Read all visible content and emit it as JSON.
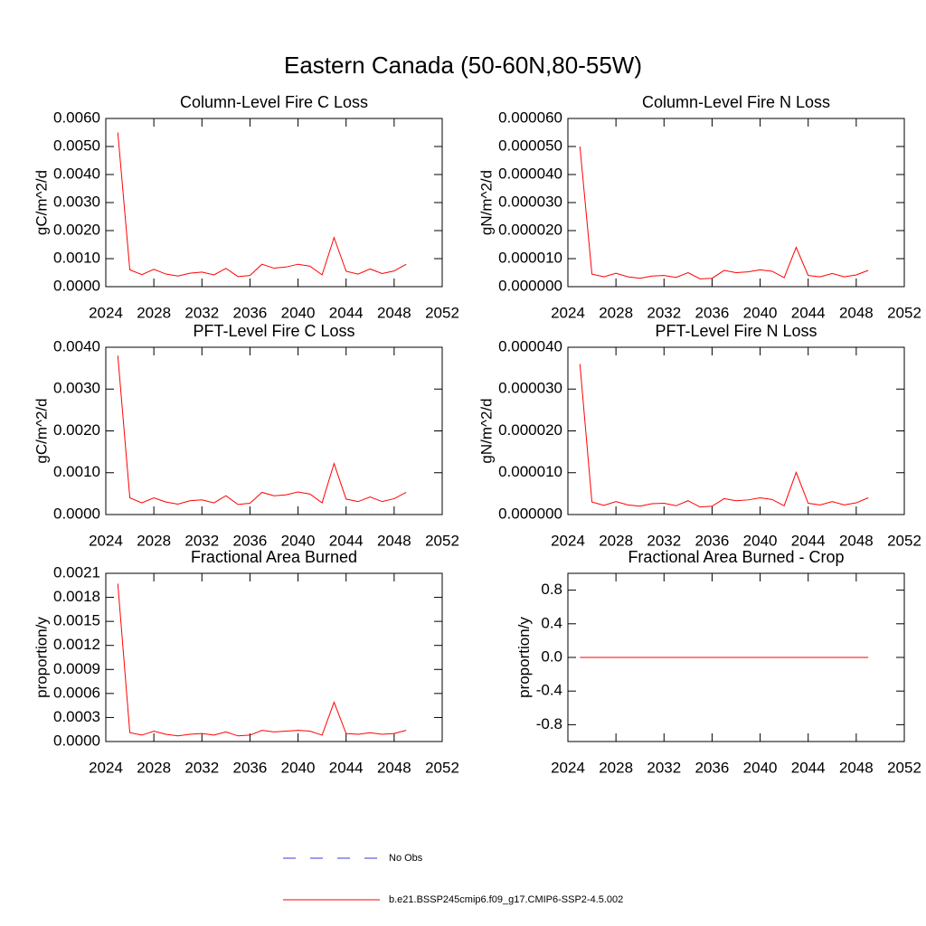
{
  "title": "Eastern Canada (50-60N,80-55W)",
  "chart_data": [
    {
      "type": "line",
      "title": "Column-Level Fire C Loss",
      "ylabel": "gC/m^2/d",
      "x": [
        2025,
        2026,
        2027,
        2028,
        2029,
        2030,
        2031,
        2032,
        2033,
        2034,
        2035,
        2036,
        2037,
        2038,
        2039,
        2040,
        2041,
        2042,
        2043,
        2044,
        2045,
        2046,
        2047,
        2048,
        2049
      ],
      "values": [
        0.0055,
        0.0006,
        0.00043,
        0.00062,
        0.00045,
        0.00038,
        0.00048,
        0.00052,
        0.00042,
        0.00065,
        0.00036,
        0.0004,
        0.0008,
        0.00066,
        0.0007,
        0.0008,
        0.00073,
        0.00042,
        0.00175,
        0.00055,
        0.00045,
        0.00063,
        0.00047,
        0.00056,
        0.0008
      ],
      "color": "#ff0000",
      "xlim": [
        2024,
        2052
      ],
      "xticks": [
        2024,
        2028,
        2032,
        2036,
        2040,
        2044,
        2048,
        2052
      ],
      "ylim": [
        0,
        0.006
      ],
      "yticks": [
        {
          "value": 0,
          "label": "0.0000"
        },
        {
          "value": 0.001,
          "label": "0.0010"
        },
        {
          "value": 0.002,
          "label": "0.0020"
        },
        {
          "value": 0.003,
          "label": "0.0030"
        },
        {
          "value": 0.004,
          "label": "0.0040"
        },
        {
          "value": 0.005,
          "label": "0.0050"
        },
        {
          "value": 0.006,
          "label": "0.0060"
        }
      ]
    },
    {
      "type": "line",
      "title": "Column-Level Fire N Loss",
      "ylabel": "gN/m^2/d",
      "x": [
        2025,
        2026,
        2027,
        2028,
        2029,
        2030,
        2031,
        2032,
        2033,
        2034,
        2035,
        2036,
        2037,
        2038,
        2039,
        2040,
        2041,
        2042,
        2043,
        2044,
        2045,
        2046,
        2047,
        2048,
        2049
      ],
      "values": [
        5e-05,
        4.5e-06,
        3.5e-06,
        4.8e-06,
        3.5e-06,
        3e-06,
        3.8e-06,
        4e-06,
        3.3e-06,
        5e-06,
        2.8e-06,
        3e-06,
        5.8e-06,
        5e-06,
        5.3e-06,
        6e-06,
        5.5e-06,
        3.2e-06,
        1.4e-05,
        4e-06,
        3.5e-06,
        4.7e-06,
        3.5e-06,
        4.2e-06,
        5.8e-06
      ],
      "color": "#ff0000",
      "xlim": [
        2024,
        2052
      ],
      "xticks": [
        2024,
        2028,
        2032,
        2036,
        2040,
        2044,
        2048,
        2052
      ],
      "ylim": [
        0,
        6e-05
      ],
      "yticks": [
        {
          "value": 0,
          "label": "0.000000"
        },
        {
          "value": 1e-05,
          "label": "0.000010"
        },
        {
          "value": 2e-05,
          "label": "0.000020"
        },
        {
          "value": 3e-05,
          "label": "0.000030"
        },
        {
          "value": 4e-05,
          "label": "0.000040"
        },
        {
          "value": 5e-05,
          "label": "0.000050"
        },
        {
          "value": 6e-05,
          "label": "0.000060"
        }
      ]
    },
    {
      "type": "line",
      "title": "PFT-Level Fire C Loss",
      "ylabel": "gC/m^2/d",
      "x": [
        2025,
        2026,
        2027,
        2028,
        2029,
        2030,
        2031,
        2032,
        2033,
        2034,
        2035,
        2036,
        2037,
        2038,
        2039,
        2040,
        2041,
        2042,
        2043,
        2044,
        2045,
        2046,
        2047,
        2048,
        2049
      ],
      "values": [
        0.0038,
        0.0004,
        0.00028,
        0.0004,
        0.0003,
        0.00025,
        0.00033,
        0.00035,
        0.00028,
        0.00045,
        0.00024,
        0.00027,
        0.00053,
        0.00045,
        0.00047,
        0.00054,
        0.00049,
        0.00028,
        0.00122,
        0.00037,
        0.00031,
        0.00042,
        0.00031,
        0.00038,
        0.00053
      ],
      "color": "#ff0000",
      "xlim": [
        2024,
        2052
      ],
      "xticks": [
        2024,
        2028,
        2032,
        2036,
        2040,
        2044,
        2048,
        2052
      ],
      "ylim": [
        0,
        0.004
      ],
      "yticks": [
        {
          "value": 0,
          "label": "0.0000"
        },
        {
          "value": 0.001,
          "label": "0.0010"
        },
        {
          "value": 0.002,
          "label": "0.0020"
        },
        {
          "value": 0.003,
          "label": "0.0030"
        },
        {
          "value": 0.004,
          "label": "0.0040"
        }
      ]
    },
    {
      "type": "line",
      "title": "PFT-Level Fire N Loss",
      "ylabel": "gN/m^2/d",
      "x": [
        2025,
        2026,
        2027,
        2028,
        2029,
        2030,
        2031,
        2032,
        2033,
        2034,
        2035,
        2036,
        2037,
        2038,
        2039,
        2040,
        2041,
        2042,
        2043,
        2044,
        2045,
        2046,
        2047,
        2048,
        2049
      ],
      "values": [
        3.6e-05,
        3e-06,
        2.2e-06,
        3.1e-06,
        2.3e-06,
        2e-06,
        2.6e-06,
        2.7e-06,
        2.1e-06,
        3.3e-06,
        1.8e-06,
        2e-06,
        3.8e-06,
        3.3e-06,
        3.5e-06,
        4e-06,
        3.6e-06,
        2.1e-06,
        1.01e-05,
        2.7e-06,
        2.3e-06,
        3.1e-06,
        2.3e-06,
        2.8e-06,
        4e-06
      ],
      "color": "#ff0000",
      "xlim": [
        2024,
        2052
      ],
      "xticks": [
        2024,
        2028,
        2032,
        2036,
        2040,
        2044,
        2048,
        2052
      ],
      "ylim": [
        0,
        4e-05
      ],
      "yticks": [
        {
          "value": 0,
          "label": "0.000000"
        },
        {
          "value": 1e-05,
          "label": "0.000010"
        },
        {
          "value": 2e-05,
          "label": "0.000020"
        },
        {
          "value": 3e-05,
          "label": "0.000030"
        },
        {
          "value": 4e-05,
          "label": "0.000040"
        }
      ]
    },
    {
      "type": "line",
      "title": "Fractional Area Burned",
      "ylabel": "proportion/y",
      "x": [
        2025,
        2026,
        2027,
        2028,
        2029,
        2030,
        2031,
        2032,
        2033,
        2034,
        2035,
        2036,
        2037,
        2038,
        2039,
        2040,
        2041,
        2042,
        2043,
        2044,
        2045,
        2046,
        2047,
        2048,
        2049
      ],
      "values": [
        0.00197,
        0.00011,
        8e-05,
        0.00013,
        9e-05,
        7e-05,
        9e-05,
        0.0001,
        8e-05,
        0.00012,
        7e-05,
        8e-05,
        0.00014,
        0.00012,
        0.00013,
        0.00014,
        0.00013,
        8e-05,
        0.00049,
        0.0001,
        9e-05,
        0.00011,
        9e-05,
        0.0001,
        0.00014
      ],
      "color": "#ff0000",
      "xlim": [
        2024,
        2052
      ],
      "xticks": [
        2024,
        2028,
        2032,
        2036,
        2040,
        2044,
        2048,
        2052
      ],
      "ylim": [
        0,
        0.0021
      ],
      "yticks": [
        {
          "value": 0,
          "label": "0.0000"
        },
        {
          "value": 0.0003,
          "label": "0.0003"
        },
        {
          "value": 0.0006,
          "label": "0.0006"
        },
        {
          "value": 0.0009,
          "label": "0.0009"
        },
        {
          "value": 0.0012,
          "label": "0.0012"
        },
        {
          "value": 0.0015,
          "label": "0.0015"
        },
        {
          "value": 0.0018,
          "label": "0.0018"
        },
        {
          "value": 0.0021,
          "label": "0.0021"
        }
      ]
    },
    {
      "type": "line",
      "title": "Fractional Area Burned - Crop",
      "ylabel": "proportion/y",
      "x": [
        2025,
        2026,
        2027,
        2028,
        2029,
        2030,
        2031,
        2032,
        2033,
        2034,
        2035,
        2036,
        2037,
        2038,
        2039,
        2040,
        2041,
        2042,
        2043,
        2044,
        2045,
        2046,
        2047,
        2048,
        2049
      ],
      "values": [
        0,
        0,
        0,
        0,
        0,
        0,
        0,
        0,
        0,
        0,
        0,
        0,
        0,
        0,
        0,
        0,
        0,
        0,
        0,
        0,
        0,
        0,
        0,
        0,
        0
      ],
      "color": "#ff0000",
      "xlim": [
        2024,
        2052
      ],
      "xticks": [
        2024,
        2028,
        2032,
        2036,
        2040,
        2044,
        2048,
        2052
      ],
      "ylim": [
        -1,
        1
      ],
      "yticks": [
        {
          "value": -0.8,
          "label": "-0.8"
        },
        {
          "value": -0.4,
          "label": "-0.4"
        },
        {
          "value": 0,
          "label": "0.0"
        },
        {
          "value": 0.4,
          "label": "0.4"
        },
        {
          "value": 0.8,
          "label": "0.8"
        }
      ]
    }
  ],
  "legend": [
    {
      "name": "No Obs",
      "color": "#3b3bd6",
      "dash": true
    },
    {
      "name": "b.e21.BSSP245cmip6.f09_g17.CMIP6-SSP2-4.5.002",
      "color": "#ff0000",
      "dash": false
    }
  ]
}
